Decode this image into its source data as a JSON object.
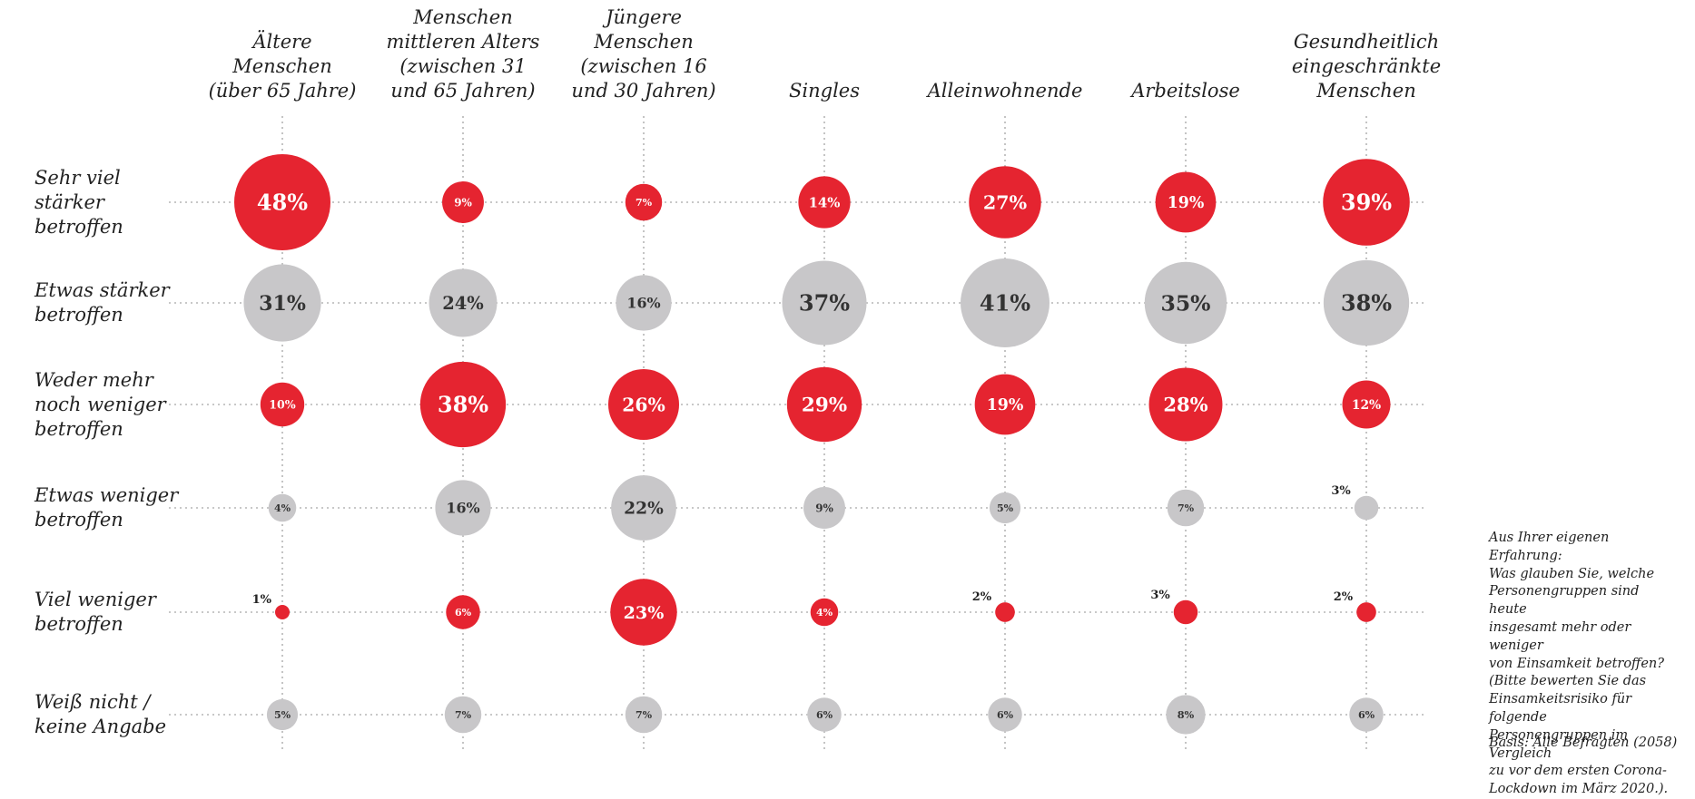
{
  "chart_data": {
    "type": "bubble",
    "columns": [
      [
        "Ältere",
        "Menschen",
        "(über 65 Jahre)"
      ],
      [
        "Menschen",
        "mittleren Alters",
        "(zwischen 31",
        "und 65 Jahren)"
      ],
      [
        "Jüngere",
        "Menschen",
        "(zwischen 16",
        "und 30 Jahren)"
      ],
      [
        "Singles"
      ],
      [
        "Alleinwohnende"
      ],
      [
        "Arbeitslose"
      ],
      [
        "Gesundheitlich",
        "eingeschränkte",
        "Menschen"
      ]
    ],
    "rows": [
      [
        "Sehr viel",
        "stärker",
        "betroffen"
      ],
      [
        "Etwas stärker",
        "betroffen"
      ],
      [
        "Weder mehr",
        "noch weniger",
        "betroffen"
      ],
      [
        "Etwas weniger",
        "betroffen"
      ],
      [
        "Viel weniger",
        "betroffen"
      ],
      [
        "Weiß nicht /",
        "keine Angabe"
      ]
    ],
    "values": [
      [
        48,
        9,
        7,
        14,
        27,
        19,
        39
      ],
      [
        31,
        24,
        16,
        37,
        41,
        35,
        38
      ],
      [
        10,
        38,
        26,
        29,
        19,
        28,
        12
      ],
      [
        4,
        16,
        22,
        9,
        5,
        7,
        3
      ],
      [
        1,
        6,
        23,
        4,
        2,
        3,
        2
      ],
      [
        5,
        7,
        7,
        6,
        6,
        8,
        6
      ]
    ],
    "row_colors": [
      "#e52430",
      "#c8c7c9",
      "#e52430",
      "#c8c7c9",
      "#e52430",
      "#c8c7c9"
    ],
    "value_suffix": "%",
    "note": [
      "Aus Ihrer eigenen Erfahrung:",
      "Was glauben Sie, welche",
      "Personengruppen sind heute",
      "insgesamt mehr oder weniger",
      "von Einsamkeit betroffen?",
      "(Bitte bewerten Sie das",
      "Einsamkeitsrisiko für folgende",
      "Personengruppen im Vergleich",
      "zu vor dem ersten Corona-",
      "Lockdown im März 2020.)."
    ],
    "base": "Basis: Alle Befragten (2058)"
  }
}
